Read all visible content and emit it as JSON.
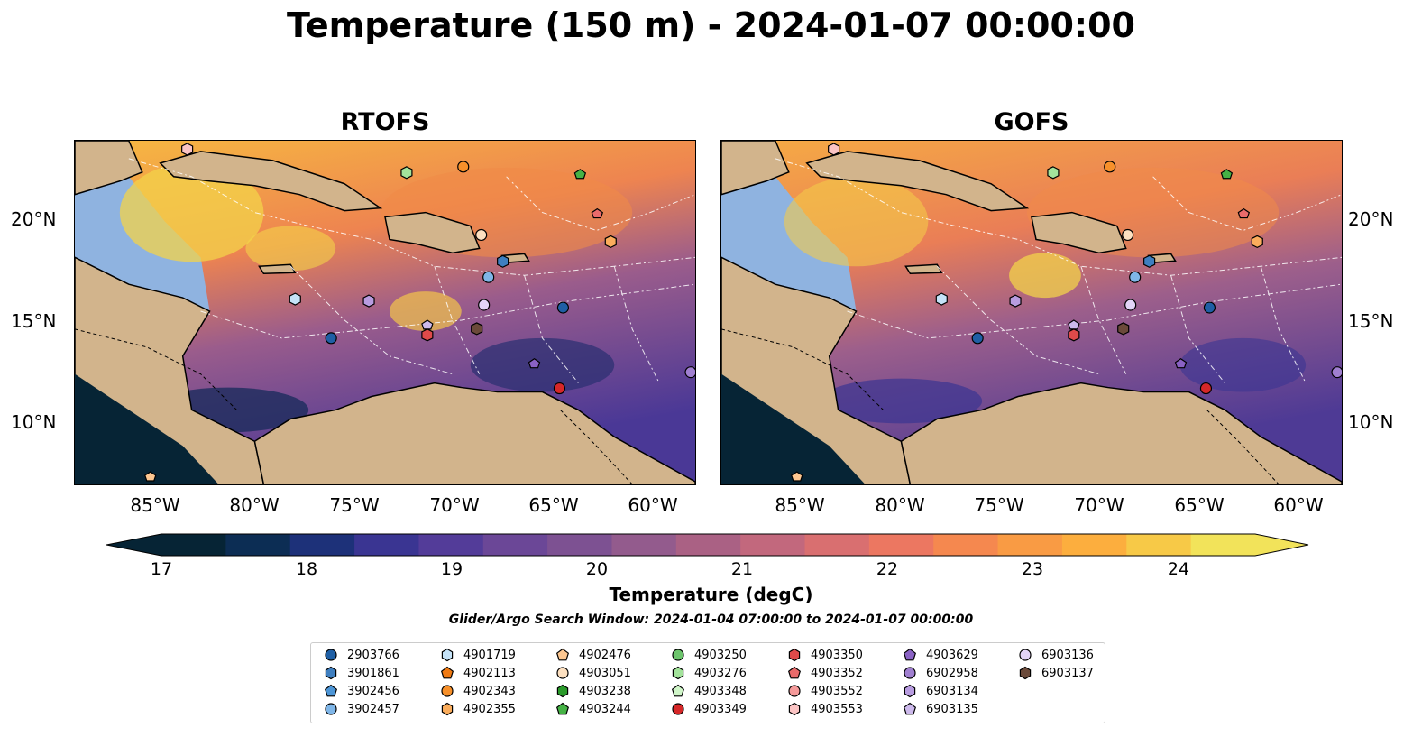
{
  "title": "Temperature (150 m) - 2024-01-07 00:00:00",
  "panels": [
    {
      "title": "RTOFS"
    },
    {
      "title": "GOFS"
    }
  ],
  "xticks": [
    "85°W",
    "80°W",
    "75°W",
    "70°W",
    "65°W",
    "60°W"
  ],
  "yticks": [
    "20°N",
    "15°N",
    "10°N"
  ],
  "colorbar": {
    "label": "Temperature (degC)",
    "ticks": [
      "17",
      "18",
      "19",
      "20",
      "21",
      "22",
      "23",
      "24"
    ],
    "colors": [
      "#062435",
      "#0c2d54",
      "#1d3179",
      "#3a3592",
      "#533c99",
      "#6b4797",
      "#7d5192",
      "#935b8d",
      "#aa6184",
      "#c2687d",
      "#d96f70",
      "#ec7761",
      "#f5884f",
      "#f99b44",
      "#fcae3e",
      "#f7c947",
      "#f2e35a"
    ]
  },
  "window_text": "Glider/Argo Search Window: 2024-01-04 07:00:00 to 2024-01-07 00:00:00",
  "legend": [
    {
      "label": "2903766",
      "marker": "circle",
      "color": "#1f5fa5"
    },
    {
      "label": "3901861",
      "marker": "hexagon",
      "color": "#3f7fc0"
    },
    {
      "label": "3902456",
      "marker": "pentagon",
      "color": "#4c95d6"
    },
    {
      "label": "3902457",
      "marker": "circle",
      "color": "#7fb6e8"
    },
    {
      "label": "4901719",
      "marker": "hexagon",
      "color": "#c5e3f8"
    },
    {
      "label": "4902113",
      "marker": "pentagon",
      "color": "#f07a12"
    },
    {
      "label": "4902343",
      "marker": "circle",
      "color": "#f7902a"
    },
    {
      "label": "4902355",
      "marker": "hexagon",
      "color": "#fbad5c"
    },
    {
      "label": "4902476",
      "marker": "pentagon",
      "color": "#fdc791"
    },
    {
      "label": "4903051",
      "marker": "circle",
      "color": "#fde0c0"
    },
    {
      "label": "4903238",
      "marker": "hexagon",
      "color": "#2a9a2a"
    },
    {
      "label": "4903244",
      "marker": "pentagon",
      "color": "#45b245"
    },
    {
      "label": "4903250",
      "marker": "circle",
      "color": "#6cc56c"
    },
    {
      "label": "4903276",
      "marker": "hexagon",
      "color": "#a3e39b"
    },
    {
      "label": "4903348",
      "marker": "pentagon",
      "color": "#cff5c8"
    },
    {
      "label": "4903349",
      "marker": "circle",
      "color": "#d62728"
    },
    {
      "label": "4903350",
      "marker": "hexagon",
      "color": "#df4a4a"
    },
    {
      "label": "4903352",
      "marker": "pentagon",
      "color": "#ea6b6b"
    },
    {
      "label": "4903552",
      "marker": "circle",
      "color": "#f59a9a"
    },
    {
      "label": "4903553",
      "marker": "hexagon",
      "color": "#fbc4c4"
    },
    {
      "label": "4903629",
      "marker": "pentagon",
      "color": "#8a62c4"
    },
    {
      "label": "6902958",
      "marker": "circle",
      "color": "#a07fd0"
    },
    {
      "label": "6903134",
      "marker": "hexagon",
      "color": "#b89ce0"
    },
    {
      "label": "6903135",
      "marker": "pentagon",
      "color": "#cdb9ec"
    },
    {
      "label": "6903136",
      "marker": "circle",
      "color": "#e3d4f7"
    },
    {
      "label": "6903137",
      "marker": "hexagon",
      "color": "#6b4a3a"
    }
  ]
}
